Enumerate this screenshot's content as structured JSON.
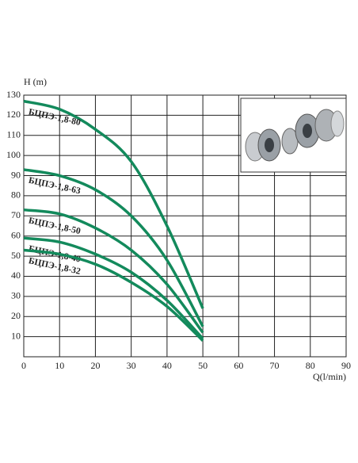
{
  "chart_data": {
    "type": "line",
    "y_label": "H (m)",
    "x_label": "Q(l/min)",
    "x": [
      0,
      10,
      20,
      30,
      40,
      50
    ],
    "series": [
      {
        "name": "БЦПЭ-1,8-80",
        "color": "#138a5c",
        "values": [
          127,
          123,
          113,
          97,
          65,
          24
        ]
      },
      {
        "name": "БЦПЭ-1,8-63",
        "color": "#138a5c",
        "values": [
          93,
          90,
          83,
          70,
          48,
          15
        ]
      },
      {
        "name": "БЦПЭ-1,8-50",
        "color": "#138a5c",
        "values": [
          73,
          71,
          64,
          53,
          36,
          12
        ]
      },
      {
        "name": "БЦПЭ-1,8-40",
        "color": "#138a5c",
        "values": [
          59,
          57,
          51,
          42,
          28,
          9
        ]
      },
      {
        "name": "БЦПЭ-1,8-32",
        "color": "#138a5c",
        "values": [
          53,
          51,
          46,
          37,
          25,
          8
        ]
      }
    ],
    "xlim": [
      0,
      90
    ],
    "xticks": [
      0,
      10,
      20,
      30,
      40,
      50,
      60,
      70,
      80,
      90
    ],
    "ylim": [
      0,
      130
    ],
    "yticks": [
      10,
      20,
      30,
      40,
      50,
      60,
      70,
      80,
      90,
      100,
      110,
      120,
      130
    ],
    "grid": true
  }
}
